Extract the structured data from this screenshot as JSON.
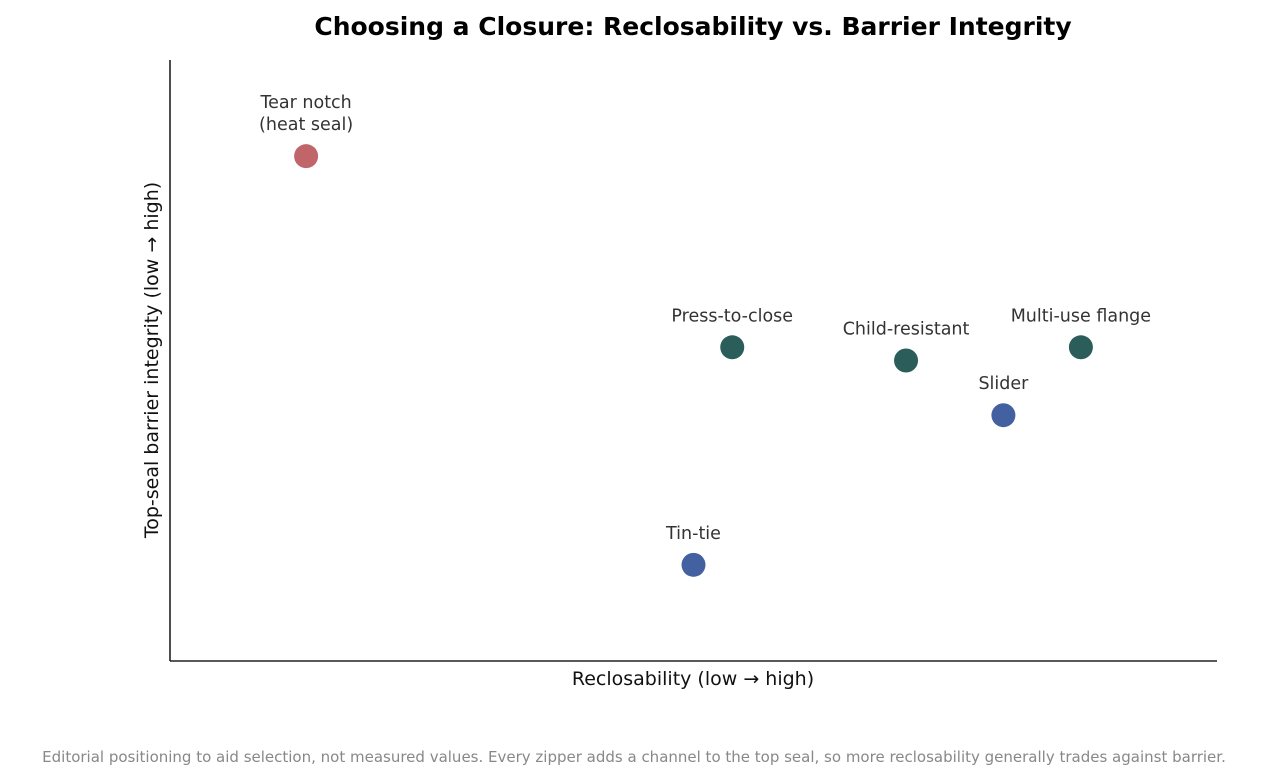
{
  "chart_data": {
    "type": "scatter",
    "title": "Choosing a Closure: Reclosability vs. Barrier Integrity",
    "xlabel": "Reclosability  (low → high)",
    "ylabel": "Top-seal barrier integrity  (low → high)",
    "xlim": [
      0,
      10
    ],
    "ylim": [
      0,
      10
    ],
    "grid": false,
    "ticks_shown": false,
    "points": [
      {
        "label": [
          "Tear notch",
          "(heat seal)"
        ],
        "x": 1.3,
        "y": 8.4,
        "color": "#c0656a"
      },
      {
        "label": [
          "Press-to-close"
        ],
        "x": 5.37,
        "y": 5.22,
        "color": "#2b5d5a"
      },
      {
        "label": [
          "Child-resistant"
        ],
        "x": 7.03,
        "y": 5.0,
        "color": "#2b5d5a"
      },
      {
        "label": [
          "Multi-use flange"
        ],
        "x": 8.7,
        "y": 5.22,
        "color": "#2b5d5a"
      },
      {
        "label": [
          "Slider"
        ],
        "x": 7.96,
        "y": 4.09,
        "color": "#4361a0"
      },
      {
        "label": [
          "Tin-tie"
        ],
        "x": 5.0,
        "y": 1.6,
        "color": "#4361a0"
      }
    ]
  },
  "footnote": "Editorial positioning to aid selection, not measured values. Every zipper adds a channel to the top seal, so more reclosability generally trades against barrier."
}
